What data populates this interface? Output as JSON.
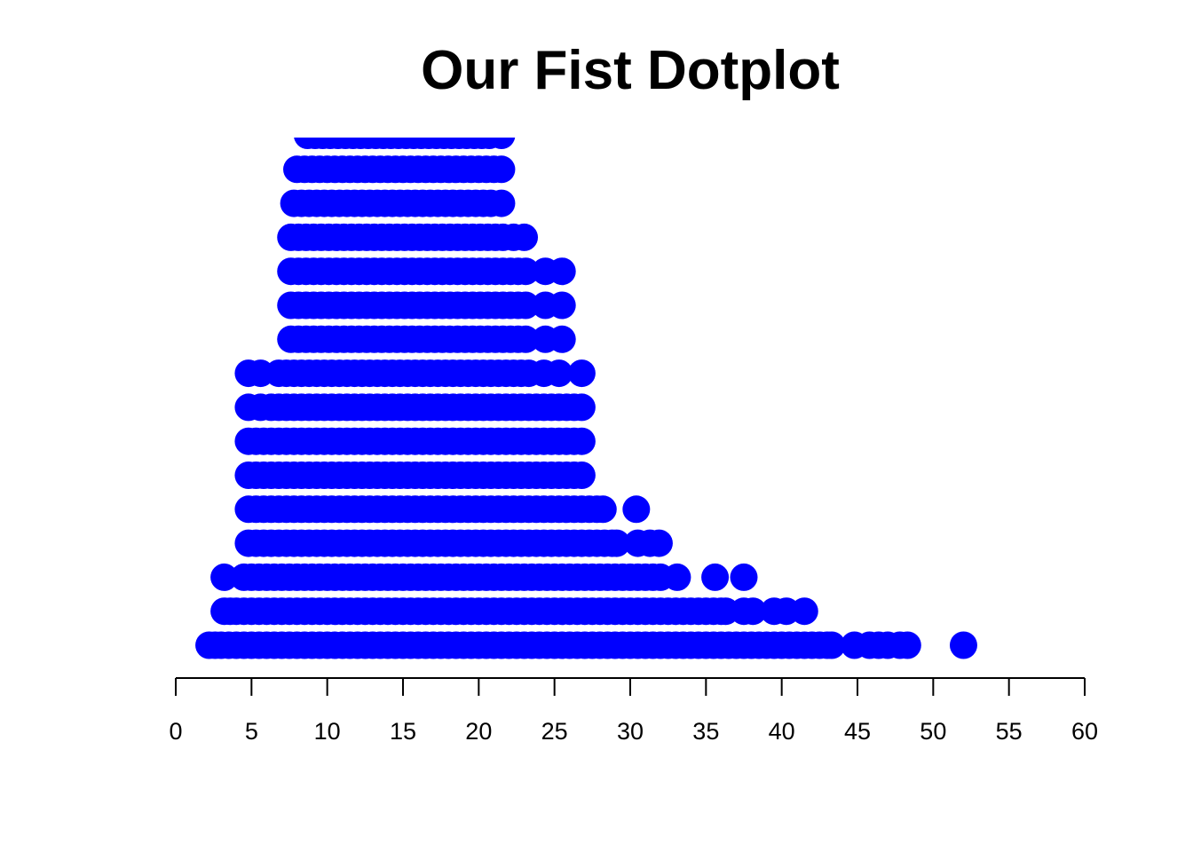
{
  "chart_data": {
    "type": "scatter",
    "subtype": "stacked-dotplot",
    "title": "Our Fist Dotplot",
    "xlabel": "",
    "ylabel": "",
    "xlim": [
      0,
      60
    ],
    "x_ticks": [
      0,
      5,
      10,
      15,
      20,
      25,
      30,
      35,
      40,
      45,
      50,
      55,
      60
    ],
    "tick_labels": [
      "0",
      "5",
      "10",
      "15",
      "20",
      "25",
      "30",
      "35",
      "40",
      "45",
      "50",
      "55",
      "60"
    ],
    "y_axis_shown": false,
    "grid": false,
    "legend": "none",
    "point_color": "#0000ff",
    "rows": [
      {
        "level": 1,
        "points": [
          2.2,
          2.6,
          3.0,
          3.5,
          4.0,
          4.5,
          5.0,
          5.5,
          6.0,
          6.5,
          7.0,
          7.5,
          8.0,
          8.5,
          9.0,
          9.5,
          10.0,
          10.5,
          11.0,
          11.5,
          12.0,
          12.5,
          13.0,
          13.5,
          14.0,
          14.5,
          15.0,
          15.5,
          16.0,
          16.5,
          17.0,
          17.5,
          18.0,
          18.5,
          19.0,
          19.5,
          20.0,
          20.5,
          21.0,
          21.5,
          22.0,
          22.5,
          23.0,
          23.5,
          24.0,
          24.5,
          25.0,
          25.5,
          26.0,
          26.5,
          27.0,
          27.5,
          28.0,
          28.5,
          29.0,
          29.5,
          30.0,
          30.5,
          31.0,
          31.5,
          32.0,
          32.5,
          33.0,
          33.5,
          34.0,
          34.5,
          35.0,
          35.5,
          36.0,
          36.5,
          37.0,
          37.5,
          38.0,
          38.5,
          39.0,
          39.5,
          40.0,
          40.5,
          41.0,
          41.5,
          42.0,
          42.5,
          43.0,
          43.3,
          44.8,
          45.8,
          46.4,
          47.0,
          47.8,
          48.3,
          52.0
        ]
      },
      {
        "level": 2,
        "points": [
          3.2,
          3.6,
          4.0,
          4.5,
          5.0,
          5.5,
          6.0,
          6.5,
          7.0,
          7.5,
          8.0,
          8.5,
          9.0,
          9.5,
          10.0,
          10.5,
          11.0,
          11.5,
          12.0,
          12.5,
          13.0,
          13.5,
          14.0,
          14.5,
          15.0,
          15.5,
          16.0,
          16.5,
          17.0,
          17.5,
          18.0,
          18.5,
          19.0,
          19.5,
          20.0,
          20.5,
          21.0,
          21.5,
          22.0,
          22.5,
          23.0,
          23.5,
          24.0,
          24.5,
          25.0,
          25.5,
          26.0,
          26.5,
          27.0,
          27.5,
          28.0,
          28.5,
          29.0,
          29.5,
          30.0,
          30.5,
          31.0,
          31.5,
          32.0,
          32.5,
          33.0,
          33.5,
          34.0,
          34.5,
          35.0,
          35.5,
          36.0,
          36.3,
          37.5,
          38.1,
          39.5,
          40.3,
          41.5
        ]
      },
      {
        "level": 3,
        "points": [
          3.2,
          4.5,
          5.0,
          5.5,
          6.0,
          6.5,
          7.0,
          7.5,
          8.0,
          8.5,
          9.0,
          9.5,
          10.0,
          10.5,
          11.0,
          11.5,
          12.0,
          12.5,
          13.0,
          13.5,
          14.0,
          14.5,
          15.0,
          15.5,
          16.0,
          16.5,
          17.0,
          17.5,
          18.0,
          18.5,
          19.0,
          19.5,
          20.0,
          20.5,
          21.0,
          21.5,
          22.0,
          22.5,
          23.0,
          23.5,
          24.0,
          24.5,
          25.0,
          25.5,
          26.0,
          26.5,
          27.0,
          27.5,
          28.0,
          28.5,
          29.0,
          29.5,
          30.0,
          30.5,
          31.0,
          31.5,
          32.0,
          33.1,
          35.6,
          37.5
        ]
      },
      {
        "level": 4,
        "points": [
          4.8,
          5.3,
          5.8,
          6.3,
          6.8,
          7.3,
          7.8,
          8.3,
          8.8,
          9.3,
          9.8,
          10.3,
          10.8,
          11.3,
          11.8,
          12.3,
          12.8,
          13.3,
          13.8,
          14.3,
          14.8,
          15.3,
          15.8,
          16.3,
          16.8,
          17.3,
          17.8,
          18.3,
          18.8,
          19.3,
          19.8,
          20.3,
          20.8,
          21.3,
          21.8,
          22.3,
          22.8,
          23.3,
          23.8,
          24.3,
          24.8,
          25.3,
          25.8,
          26.3,
          26.8,
          27.3,
          27.8,
          28.3,
          28.8,
          29.1,
          30.5,
          31.3,
          31.9
        ]
      },
      {
        "level": 5,
        "points": [
          4.8,
          5.3,
          5.8,
          6.3,
          6.8,
          7.3,
          7.8,
          8.3,
          8.8,
          9.3,
          9.8,
          10.3,
          10.8,
          11.3,
          11.8,
          12.3,
          12.8,
          13.3,
          13.8,
          14.3,
          14.8,
          15.3,
          15.8,
          16.3,
          16.8,
          17.3,
          17.8,
          18.3,
          18.8,
          19.3,
          19.8,
          20.3,
          20.8,
          21.3,
          21.8,
          22.3,
          22.8,
          23.3,
          23.8,
          24.3,
          24.8,
          25.3,
          25.8,
          26.3,
          26.8,
          27.3,
          27.8,
          28.2,
          30.4
        ]
      },
      {
        "level": 6,
        "points": [
          4.8,
          5.3,
          5.8,
          6.3,
          6.8,
          7.3,
          7.8,
          8.3,
          8.8,
          9.3,
          9.8,
          10.3,
          10.8,
          11.3,
          11.8,
          12.3,
          12.8,
          13.3,
          13.8,
          14.3,
          14.8,
          15.3,
          15.8,
          16.3,
          16.8,
          17.3,
          17.8,
          18.3,
          18.8,
          19.3,
          19.8,
          20.3,
          20.8,
          21.3,
          21.8,
          22.3,
          22.8,
          23.3,
          23.8,
          24.3,
          24.8,
          25.3,
          25.8,
          26.3,
          26.8
        ]
      },
      {
        "level": 7,
        "points": [
          4.8,
          5.3,
          5.8,
          6.3,
          6.8,
          7.3,
          7.8,
          8.3,
          8.8,
          9.3,
          9.8,
          10.3,
          10.8,
          11.3,
          11.8,
          12.3,
          12.8,
          13.3,
          13.8,
          14.3,
          14.8,
          15.3,
          15.8,
          16.3,
          16.8,
          17.3,
          17.8,
          18.3,
          18.8,
          19.3,
          19.8,
          20.3,
          20.8,
          21.3,
          21.8,
          22.3,
          22.8,
          23.3,
          23.8,
          24.3,
          24.8,
          25.3,
          25.8,
          26.3,
          26.8
        ]
      },
      {
        "level": 8,
        "points": [
          4.8,
          5.6,
          6.3,
          6.8,
          7.3,
          7.8,
          8.3,
          8.8,
          9.3,
          9.8,
          10.3,
          10.8,
          11.3,
          11.8,
          12.3,
          12.8,
          13.3,
          13.8,
          14.3,
          14.8,
          15.3,
          15.8,
          16.3,
          16.8,
          17.3,
          17.8,
          18.3,
          18.8,
          19.3,
          19.8,
          20.3,
          20.8,
          21.3,
          21.8,
          22.3,
          22.8,
          23.3,
          23.8,
          24.3,
          24.8,
          25.3,
          25.8,
          26.3,
          26.8
        ]
      },
      {
        "level": 9,
        "points": [
          4.8,
          5.6,
          6.8,
          7.3,
          7.8,
          8.3,
          8.8,
          9.3,
          9.8,
          10.3,
          10.8,
          11.3,
          11.8,
          12.3,
          12.8,
          13.3,
          13.8,
          14.3,
          14.8,
          15.3,
          15.8,
          16.3,
          16.8,
          17.3,
          17.8,
          18.3,
          18.8,
          19.3,
          19.8,
          20.3,
          20.8,
          21.3,
          21.8,
          22.3,
          22.8,
          23.3,
          24.3,
          25.3,
          26.8
        ]
      },
      {
        "level": 10,
        "points": [
          7.6,
          8.1,
          8.6,
          9.1,
          9.6,
          10.1,
          10.6,
          11.1,
          11.6,
          12.1,
          12.6,
          13.1,
          13.6,
          14.1,
          14.6,
          15.1,
          15.6,
          16.1,
          16.6,
          17.1,
          17.6,
          18.1,
          18.6,
          19.1,
          19.6,
          20.1,
          20.6,
          21.1,
          21.6,
          22.1,
          22.6,
          23.1,
          24.4,
          25.5
        ]
      },
      {
        "level": 11,
        "points": [
          7.6,
          8.1,
          8.6,
          9.1,
          9.6,
          10.1,
          10.6,
          11.1,
          11.6,
          12.1,
          12.6,
          13.1,
          13.6,
          14.1,
          14.6,
          15.1,
          15.6,
          16.1,
          16.6,
          17.1,
          17.6,
          18.1,
          18.6,
          19.1,
          19.6,
          20.1,
          20.6,
          21.1,
          21.6,
          22.1,
          22.6,
          23.1,
          24.4,
          25.5
        ]
      },
      {
        "level": 12,
        "points": [
          7.6,
          8.1,
          8.6,
          9.1,
          9.6,
          10.1,
          10.6,
          11.1,
          11.6,
          12.1,
          12.6,
          13.1,
          13.6,
          14.1,
          14.6,
          15.1,
          15.6,
          16.1,
          16.6,
          17.1,
          17.6,
          18.1,
          18.6,
          19.1,
          19.6,
          20.1,
          20.6,
          21.1,
          21.6,
          22.1,
          22.6,
          23.1,
          24.4,
          25.5
        ]
      },
      {
        "level": 13,
        "points": [
          7.6,
          8.1,
          8.6,
          9.1,
          9.6,
          10.1,
          10.6,
          11.1,
          11.6,
          12.1,
          12.6,
          13.1,
          13.6,
          14.1,
          14.6,
          15.1,
          15.6,
          16.1,
          16.6,
          17.1,
          17.6,
          18.1,
          18.6,
          19.1,
          19.6,
          20.1,
          20.6,
          21.1,
          21.6,
          22.3,
          23.0
        ]
      },
      {
        "level": 14,
        "points": [
          7.8,
          8.3,
          8.8,
          9.3,
          9.8,
          10.3,
          10.8,
          11.3,
          11.8,
          12.3,
          12.8,
          13.3,
          13.8,
          14.3,
          14.8,
          15.3,
          15.8,
          16.3,
          16.8,
          17.3,
          17.8,
          18.3,
          18.8,
          19.3,
          19.8,
          20.3,
          20.8,
          21.5
        ]
      },
      {
        "level": 15,
        "points": [
          8.0,
          8.5,
          9.0,
          9.5,
          10.0,
          10.5,
          11.0,
          11.5,
          12.0,
          12.5,
          13.0,
          13.5,
          14.0,
          14.5,
          15.0,
          15.5,
          16.0,
          16.5,
          17.0,
          17.5,
          18.0,
          18.5,
          19.0,
          19.5,
          20.0,
          20.5,
          21.0,
          21.5
        ]
      },
      {
        "level": 16,
        "points": [
          8.7,
          9.2,
          9.7,
          10.2,
          10.7,
          11.2,
          11.7,
          12.2,
          12.7,
          13.2,
          13.7,
          14.2,
          14.7,
          15.2,
          15.7,
          16.2,
          16.7,
          17.2,
          17.7,
          18.2,
          18.7,
          19.2,
          19.7,
          20.2,
          20.7,
          21.5
        ]
      }
    ]
  }
}
